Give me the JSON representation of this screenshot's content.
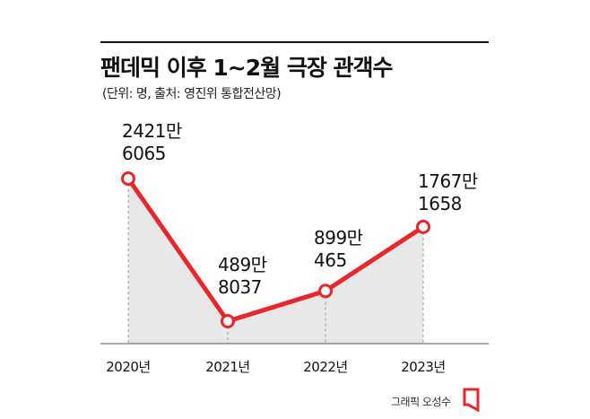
{
  "header": {
    "title": "팬데믹 이후 1~2월 극장 관객수",
    "subtitle": "(단위: 명, 출처: 영진위 통합전산망)"
  },
  "chart_data": {
    "type": "area",
    "title": "팬데믹 이후 1~2월 극장 관객수",
    "subtitle": "(단위: 명, 출처: 영진위 통합전산망)",
    "categories": [
      "2020년",
      "2021년",
      "2022년",
      "2023년"
    ],
    "values": [
      24216065,
      4898037,
      8990465,
      17671658
    ],
    "data_labels": [
      [
        "2421만",
        "6065"
      ],
      [
        "489만",
        "8037"
      ],
      [
        "899만",
        "465"
      ],
      [
        "1767만",
        "1658"
      ]
    ],
    "ylim": [
      0,
      24216065
    ],
    "grid": false,
    "legend": "none",
    "colors": {
      "line": "#e8262c",
      "area": "#e8e8e8",
      "marker_fill": "#ffffff",
      "dashed": "#9a9a9a"
    }
  },
  "footer": {
    "credit": "그래픽 오성수",
    "logo": "newspaper-logo-icon"
  }
}
